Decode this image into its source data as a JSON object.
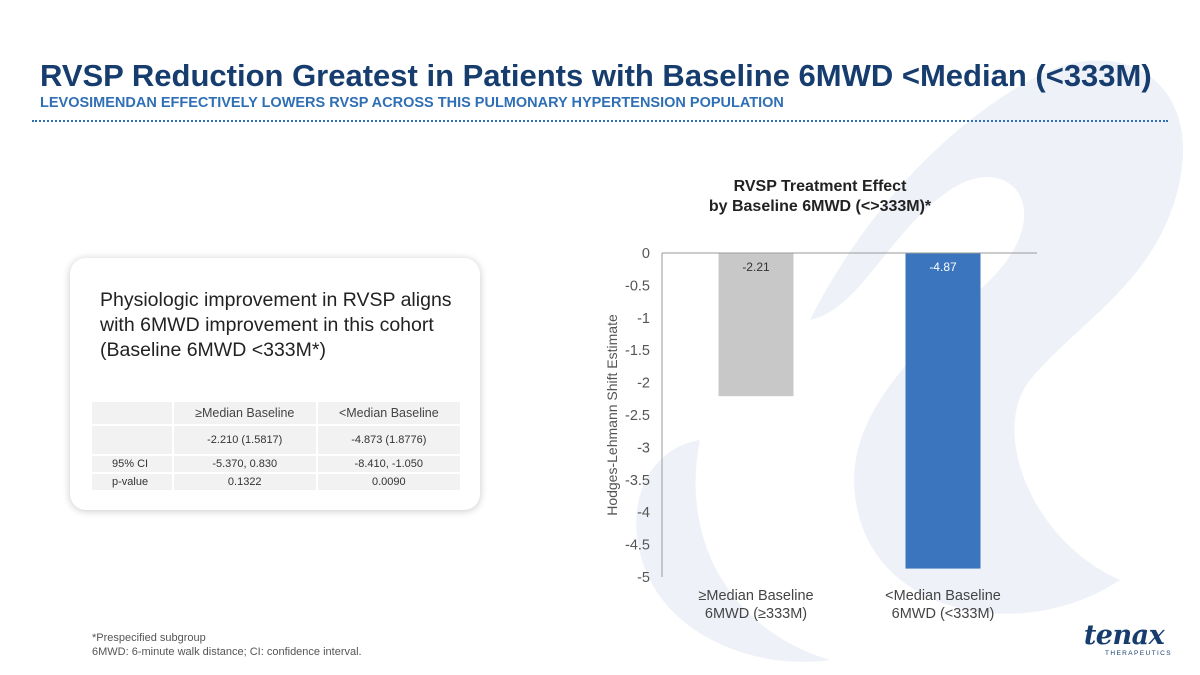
{
  "slide": {
    "title": "RVSP Reduction Greatest in Patients with Baseline 6MWD <Median (<333M)",
    "subtitle": "LEVOSIMENDAN EFFECTIVELY LOWERS RVSP ACROSS THIS PULMONARY HYPERTENSION POPULATION"
  },
  "colors": {
    "title": "#163d6e",
    "subtitle": "#2f6fb5",
    "bar_gray": "#c8c8c8",
    "bar_blue": "#3a75bd",
    "watermark": "#eef2f8"
  },
  "card": {
    "text": "Physiologic improvement in RVSP aligns with 6MWD improvement in this cohort (Baseline 6MWD <333M*)",
    "table": {
      "headers": [
        "",
        "≥Median Baseline",
        "<Median Baseline"
      ],
      "rows": [
        {
          "label": "",
          "ge": "-2.210 (1.5817)",
          "lt": "-4.873 (1.8776)"
        },
        {
          "label": "95% CI",
          "ge": "-5.370, 0.830",
          "lt": "-8.410, -1.050"
        },
        {
          "label": "p-value",
          "ge": "0.1322",
          "lt": "0.0090"
        }
      ]
    }
  },
  "chart_data": {
    "type": "bar",
    "title_line1": "RVSP Treatment Effect",
    "title_line2": "by Baseline 6MWD (<>333M)*",
    "ylabel": "Hodges-Lehmann Shift Estimate",
    "xlabel": "",
    "ylim": [
      -5,
      0
    ],
    "yticks": [
      0,
      -0.5,
      -1,
      -1.5,
      -2,
      -2.5,
      -3,
      -3.5,
      -4,
      -4.5,
      -5
    ],
    "ytick_labels": [
      "0",
      "-0.5",
      "-1",
      "-1.5",
      "-2",
      "-2.5",
      "-3",
      "-3.5",
      "-4",
      "-4.5",
      "-5"
    ],
    "categories": [
      {
        "line1": "≥Median Baseline",
        "line2": "6MWD (≥333M)"
      },
      {
        "line1": "<Median Baseline",
        "line2": "6MWD (<333M)"
      }
    ],
    "values": [
      -2.21,
      -4.87
    ],
    "data_labels": [
      "-2.21",
      "-4.87"
    ],
    "grid": false,
    "legend": "none"
  },
  "footnotes": {
    "line1": "*Prespecified subgroup",
    "line2": "6MWD: 6-minute walk distance; CI: confidence interval."
  },
  "logo": {
    "word": "tenax",
    "sub": "THERAPEUTICS"
  }
}
